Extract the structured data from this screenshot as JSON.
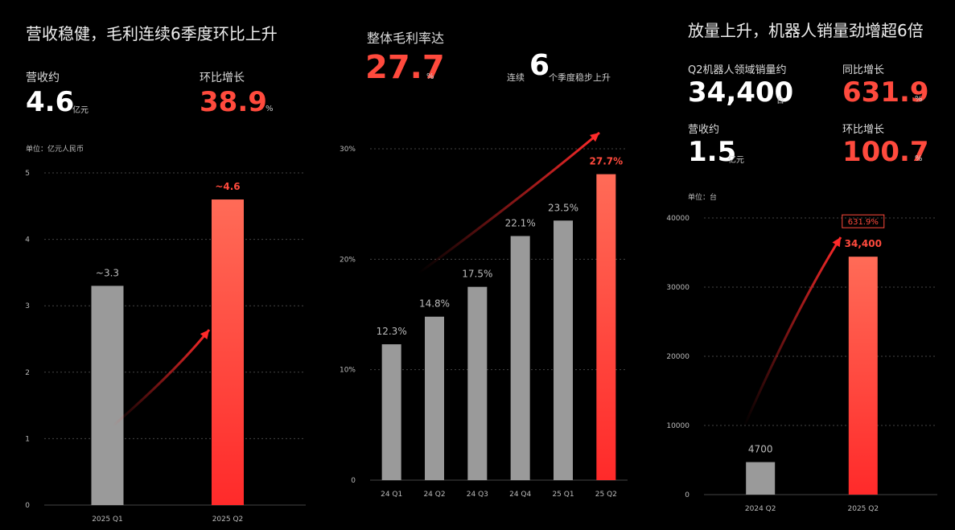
{
  "colors": {
    "red": "#ff4a3d",
    "gray": "#9a9a9a",
    "bg": "#000000"
  },
  "panel1": {
    "title": "营收稳健，毛利连续6季度环比上升",
    "kpi1_label": "营收约",
    "kpi1_value": "4.6",
    "kpi1_unit": "亿元",
    "kpi2_label": "环比增长",
    "kpi2_value": "38.9",
    "kpi2_unit": "%",
    "unit_note": "单位：亿元人民币"
  },
  "panel2": {
    "title": "整体毛利率达",
    "value": "27.7",
    "value_unit": "%",
    "streak_prefix": "连续",
    "streak_num": "6",
    "streak_suffix": "个季度稳步上升"
  },
  "panel3": {
    "title": "放量上升，机器人销量劲增超6倍",
    "kpi1_label": "Q2机器人领域销量约",
    "kpi1_value": "34,400",
    "kpi1_unit": "台",
    "kpi2_label": "同比增长",
    "kpi2_value": "631.9",
    "kpi2_unit": "%",
    "kpi3_label": "营收约",
    "kpi3_value": "1.5",
    "kpi3_unit": "亿元",
    "kpi4_label": "环比增长",
    "kpi4_value": "100.7",
    "kpi4_unit": "%",
    "unit_note": "单位：台"
  },
  "chart_data": [
    {
      "type": "bar",
      "categories": [
        "2025 Q1",
        "2025 Q2"
      ],
      "values": [
        3.3,
        4.6
      ],
      "data_labels": [
        "~3.3",
        "~4.6"
      ],
      "ylim": [
        0,
        5
      ],
      "yticks": [
        "0",
        "1",
        "2",
        "3",
        "4",
        "5"
      ],
      "grid": true,
      "highlight": [
        1
      ]
    },
    {
      "type": "bar",
      "categories": [
        "24 Q1",
        "24 Q2",
        "24 Q3",
        "24 Q4",
        "25 Q1",
        "25 Q2"
      ],
      "values": [
        12.3,
        14.8,
        17.5,
        22.1,
        23.5,
        27.7
      ],
      "data_labels": [
        "12.3%",
        "14.8%",
        "17.5%",
        "22.1%",
        "23.5%",
        "27.7%"
      ],
      "ylim": [
        0,
        30
      ],
      "yticks": [
        "0",
        "10%",
        "20%",
        "30%"
      ],
      "grid": true,
      "highlight": [
        5
      ]
    },
    {
      "type": "bar",
      "categories": [
        "2024 Q2",
        "2025 Q2"
      ],
      "values": [
        4700,
        34400
      ],
      "data_labels": [
        "4700",
        "34,400"
      ],
      "badge": "631.9%",
      "ylim": [
        0,
        40000
      ],
      "yticks": [
        "0",
        "10000",
        "20000",
        "30000",
        "40000"
      ],
      "grid": true,
      "highlight": [
        1
      ]
    }
  ]
}
